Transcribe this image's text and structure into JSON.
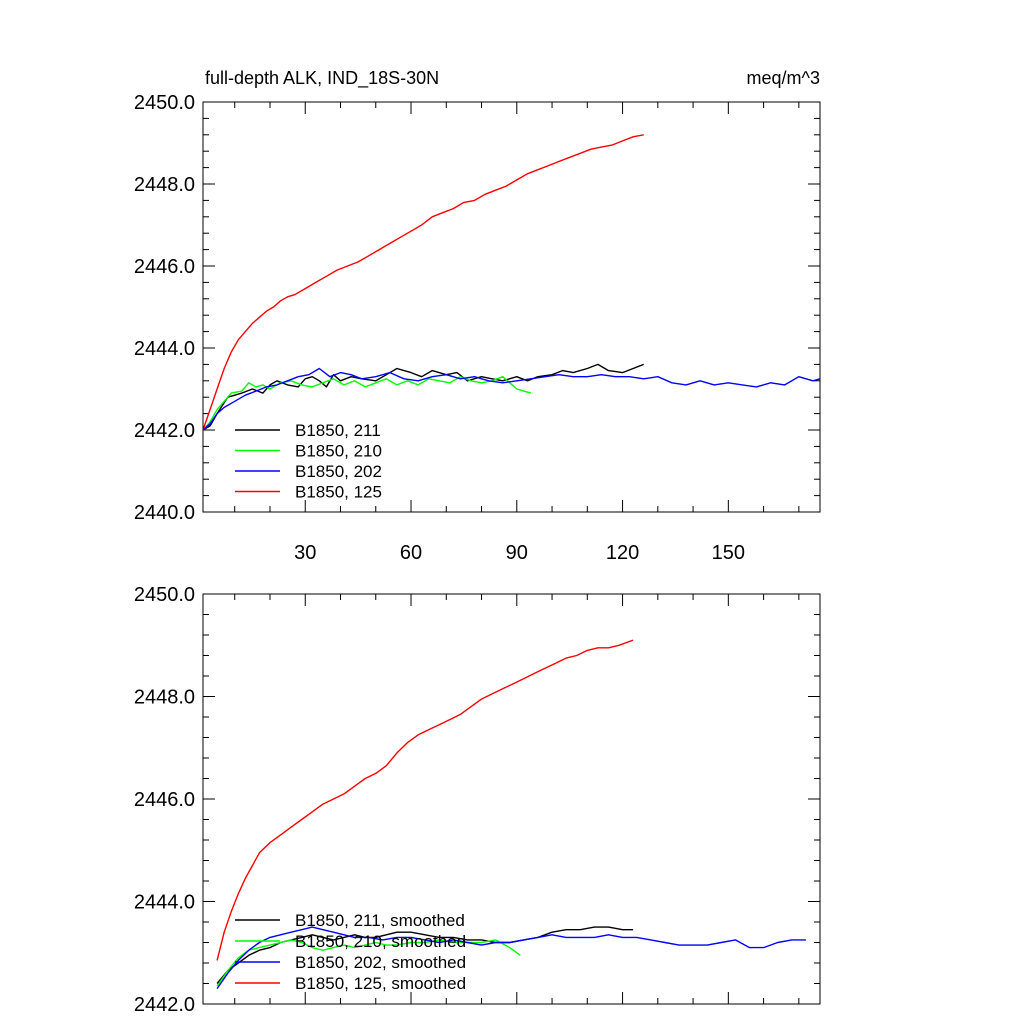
{
  "chart_data": [
    {
      "type": "line",
      "title": "full-depth ALK, IND_18S-30N",
      "units": "meq/m^3",
      "xlim": [
        1,
        176
      ],
      "ylim": [
        2440,
        2450
      ],
      "x_ticks": [
        30,
        60,
        90,
        120,
        150
      ],
      "x_tick_labels": [
        "30",
        "60",
        "90",
        "120",
        "150"
      ],
      "y_ticks": [
        2440,
        2442,
        2444,
        2446,
        2448,
        2450
      ],
      "y_tick_labels": [
        "2440.0",
        "2442.0",
        "2444.0",
        "2446.0",
        "2448.0",
        "2450.0"
      ],
      "legend_position": "bottom-left",
      "series": [
        {
          "name": "B1850, 211",
          "color": "#000000",
          "x": [
            1,
            3,
            5,
            8,
            10,
            12,
            15,
            18,
            20,
            22,
            25,
            28,
            30,
            32,
            34,
            36,
            38,
            40,
            43,
            46,
            50,
            53,
            56,
            60,
            63,
            66,
            70,
            73,
            76,
            80,
            83,
            86,
            90,
            93,
            96,
            100,
            103,
            106,
            110,
            113,
            116,
            120,
            123,
            126
          ],
          "y": [
            2442.0,
            2442.1,
            2442.4,
            2442.8,
            2442.85,
            2442.9,
            2443.0,
            2442.9,
            2443.1,
            2443.2,
            2443.1,
            2443.05,
            2443.25,
            2443.3,
            2443.2,
            2443.05,
            2443.35,
            2443.2,
            2443.3,
            2443.25,
            2443.2,
            2443.35,
            2443.5,
            2443.4,
            2443.3,
            2443.45,
            2443.35,
            2443.4,
            2443.2,
            2443.3,
            2443.25,
            2443.2,
            2443.3,
            2443.2,
            2443.3,
            2443.35,
            2443.45,
            2443.4,
            2443.5,
            2443.6,
            2443.45,
            2443.4,
            2443.5,
            2443.6
          ]
        },
        {
          "name": "B1850, 210",
          "color": "#00ff00",
          "x": [
            1,
            3,
            5,
            7,
            9,
            12,
            14,
            16,
            18,
            20,
            23,
            26,
            29,
            32,
            35,
            38,
            41,
            44,
            47,
            50,
            53,
            56,
            59,
            62,
            65,
            68,
            71,
            74,
            77,
            80,
            83,
            86,
            88,
            90,
            92,
            94
          ],
          "y": [
            2442.0,
            2442.2,
            2442.5,
            2442.7,
            2442.9,
            2442.95,
            2443.15,
            2443.05,
            2443.1,
            2443.0,
            2443.15,
            2443.2,
            2443.1,
            2443.05,
            2443.15,
            2443.25,
            2443.1,
            2443.2,
            2443.05,
            2443.15,
            2443.25,
            2443.1,
            2443.2,
            2443.1,
            2443.25,
            2443.2,
            2443.15,
            2443.3,
            2443.2,
            2443.15,
            2443.2,
            2443.3,
            2443.15,
            2443.0,
            2442.95,
            2442.9
          ]
        },
        {
          "name": "B1850, 202",
          "color": "#0000ff",
          "x": [
            1,
            3,
            5,
            7,
            10,
            13,
            16,
            19,
            22,
            25,
            28,
            31,
            34,
            37,
            40,
            43,
            46,
            50,
            54,
            58,
            62,
            66,
            70,
            74,
            78,
            82,
            86,
            90,
            94,
            98,
            102,
            106,
            110,
            114,
            118,
            122,
            126,
            130,
            134,
            138,
            142,
            146,
            150,
            154,
            158,
            162,
            166,
            170,
            174,
            176
          ],
          "y": [
            2442.0,
            2442.15,
            2442.4,
            2442.55,
            2442.7,
            2442.85,
            2442.95,
            2443.05,
            2443.1,
            2443.2,
            2443.3,
            2443.35,
            2443.5,
            2443.3,
            2443.4,
            2443.35,
            2443.25,
            2443.3,
            2443.4,
            2443.25,
            2443.2,
            2443.3,
            2443.35,
            2443.25,
            2443.3,
            2443.2,
            2443.15,
            2443.2,
            2443.25,
            2443.3,
            2443.35,
            2443.3,
            2443.3,
            2443.35,
            2443.3,
            2443.3,
            2443.25,
            2443.3,
            2443.15,
            2443.1,
            2443.2,
            2443.1,
            2443.15,
            2443.1,
            2443.05,
            2443.15,
            2443.1,
            2443.3,
            2443.2,
            2443.25
          ]
        },
        {
          "name": "B1850, 125",
          "color": "#ff0000",
          "x": [
            1,
            3,
            5,
            7,
            9,
            11,
            13,
            15,
            17,
            19,
            21,
            23,
            25,
            27,
            30,
            33,
            36,
            39,
            42,
            45,
            48,
            51,
            54,
            57,
            60,
            63,
            66,
            69,
            72,
            75,
            78,
            81,
            84,
            87,
            90,
            93,
            96,
            99,
            102,
            105,
            108,
            111,
            114,
            117,
            120,
            123,
            126
          ],
          "y": [
            2442.0,
            2442.5,
            2443.0,
            2443.5,
            2443.9,
            2444.2,
            2444.4,
            2444.6,
            2444.75,
            2444.9,
            2445.0,
            2445.15,
            2445.25,
            2445.3,
            2445.45,
            2445.6,
            2445.75,
            2445.9,
            2446.0,
            2446.1,
            2446.25,
            2446.4,
            2446.55,
            2446.7,
            2446.85,
            2447.0,
            2447.2,
            2447.3,
            2447.4,
            2447.55,
            2447.6,
            2447.75,
            2447.85,
            2447.95,
            2448.1,
            2448.25,
            2448.35,
            2448.45,
            2448.55,
            2448.65,
            2448.75,
            2448.85,
            2448.9,
            2448.95,
            2449.05,
            2449.15,
            2449.2
          ]
        }
      ]
    },
    {
      "type": "line",
      "title": "",
      "xlim": [
        1,
        176
      ],
      "ylim": [
        2442,
        2450
      ],
      "x_ticks": [
        30,
        60,
        90,
        120,
        150
      ],
      "x_tick_labels": [],
      "y_ticks": [
        2442,
        2444,
        2446,
        2448,
        2450
      ],
      "y_tick_labels": [
        "2442.0",
        "2444.0",
        "2446.0",
        "2448.0",
        "2450.0"
      ],
      "legend_position": "bottom-left",
      "series": [
        {
          "name": "B1850, 211, smoothed",
          "color": "#000000",
          "x": [
            5,
            8,
            11,
            14,
            17,
            20,
            23,
            26,
            29,
            32,
            35,
            38,
            41,
            44,
            47,
            50,
            53,
            56,
            60,
            64,
            68,
            72,
            76,
            80,
            84,
            88,
            92,
            96,
            100,
            104,
            108,
            112,
            116,
            120,
            123
          ],
          "y": [
            2442.4,
            2442.65,
            2442.8,
            2442.95,
            2443.05,
            2443.1,
            2443.2,
            2443.25,
            2443.3,
            2443.35,
            2443.3,
            2443.25,
            2443.3,
            2443.35,
            2443.3,
            2443.3,
            2443.35,
            2443.4,
            2443.4,
            2443.35,
            2443.3,
            2443.3,
            2443.25,
            2443.25,
            2443.2,
            2443.2,
            2443.25,
            2443.3,
            2443.4,
            2443.45,
            2443.45,
            2443.5,
            2443.5,
            2443.45,
            2443.45
          ]
        },
        {
          "name": "B1850, 210, smoothed",
          "color": "#00ff00",
          "x": [
            5,
            8,
            11,
            14,
            17,
            20,
            23,
            26,
            29,
            32,
            35,
            38,
            41,
            44,
            47,
            50,
            53,
            56,
            60,
            64,
            68,
            72,
            76,
            80,
            84,
            88,
            91
          ],
          "y": [
            2442.35,
            2442.65,
            2442.9,
            2443.05,
            2443.1,
            2443.15,
            2443.2,
            2443.25,
            2443.2,
            2443.1,
            2443.05,
            2443.1,
            2443.15,
            2443.1,
            2443.15,
            2443.2,
            2443.15,
            2443.15,
            2443.2,
            2443.2,
            2443.25,
            2443.2,
            2443.2,
            2443.2,
            2443.25,
            2443.1,
            2442.95
          ]
        },
        {
          "name": "B1850, 202, smoothed",
          "color": "#0000ff",
          "x": [
            5,
            8,
            11,
            14,
            17,
            20,
            23,
            26,
            29,
            32,
            35,
            38,
            41,
            44,
            48,
            52,
            56,
            60,
            64,
            68,
            72,
            76,
            80,
            84,
            88,
            92,
            96,
            100,
            104,
            108,
            112,
            116,
            120,
            124,
            128,
            132,
            136,
            140,
            144,
            148,
            152,
            156,
            160,
            164,
            168,
            172
          ],
          "y": [
            2442.3,
            2442.6,
            2442.85,
            2443.05,
            2443.2,
            2443.3,
            2443.35,
            2443.4,
            2443.45,
            2443.5,
            2443.45,
            2443.4,
            2443.35,
            2443.3,
            2443.3,
            2443.25,
            2443.3,
            2443.3,
            2443.25,
            2443.2,
            2443.25,
            2443.2,
            2443.15,
            2443.2,
            2443.2,
            2443.25,
            2443.3,
            2443.35,
            2443.3,
            2443.3,
            2443.3,
            2443.35,
            2443.3,
            2443.3,
            2443.25,
            2443.2,
            2443.15,
            2443.15,
            2443.15,
            2443.2,
            2443.25,
            2443.1,
            2443.1,
            2443.2,
            2443.25,
            2443.25
          ]
        },
        {
          "name": "B1850, 125, smoothed",
          "color": "#ff0000",
          "x": [
            5,
            7,
            9,
            11,
            13,
            15,
            17,
            20,
            23,
            26,
            29,
            32,
            35,
            38,
            41,
            44,
            47,
            50,
            53,
            56,
            59,
            62,
            65,
            68,
            71,
            74,
            77,
            80,
            83,
            86,
            89,
            92,
            95,
            98,
            101,
            104,
            107,
            110,
            113,
            116,
            119,
            123
          ],
          "y": [
            2442.85,
            2443.4,
            2443.8,
            2444.15,
            2444.45,
            2444.7,
            2444.95,
            2445.15,
            2445.3,
            2445.45,
            2445.6,
            2445.75,
            2445.9,
            2446.0,
            2446.1,
            2446.25,
            2446.4,
            2446.5,
            2446.65,
            2446.9,
            2447.1,
            2447.25,
            2447.35,
            2447.45,
            2447.55,
            2447.65,
            2447.8,
            2447.95,
            2448.05,
            2448.15,
            2448.25,
            2448.35,
            2448.45,
            2448.55,
            2448.65,
            2448.75,
            2448.8,
            2448.9,
            2448.95,
            2448.95,
            2449.0,
            2449.1
          ]
        }
      ]
    }
  ]
}
